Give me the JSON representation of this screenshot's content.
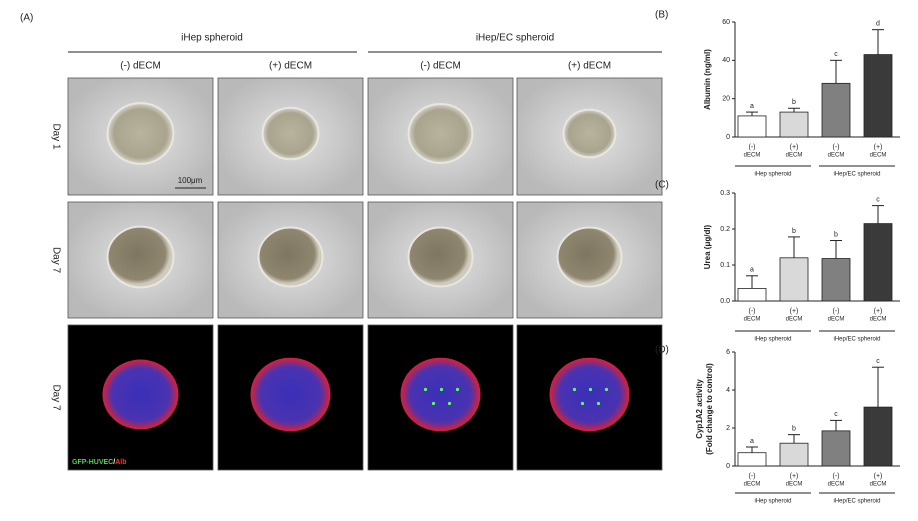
{
  "panel_a": {
    "panel": "(A)",
    "groups": [
      "iHep spheroid",
      "iHep/EC spheroid"
    ],
    "columns": [
      "(-) dECM",
      "(+) dECM",
      "(-) dECM",
      "(+) dECM"
    ],
    "rows": [
      "Day 1",
      "Day 7",
      "Day 7"
    ],
    "scale_bar": "100μm",
    "stain_green": "GFP-HUVEC",
    "stain_sep": "/",
    "stain_red": "Alb"
  },
  "chart_data": [
    {
      "type": "bar",
      "panel": "(B)",
      "y_label": "Albumin (ng/ml)",
      "categories": [
        "(-)",
        "(+)",
        "(-)",
        "(+)"
      ],
      "category_unit": "dECM",
      "groups": [
        "iHep spheroid",
        "iHep/EC spheroid"
      ],
      "values": [
        11,
        13,
        28,
        43
      ],
      "errors": [
        2,
        2,
        12,
        13
      ],
      "annotations": [
        "a",
        "b",
        "c",
        "d"
      ],
      "colors": [
        "#ffffff",
        "#d9d9d9",
        "#808080",
        "#3a3a3a"
      ],
      "ylim": [
        0,
        60
      ],
      "yticks": [
        0,
        20,
        40,
        60
      ]
    },
    {
      "type": "bar",
      "panel": "(C)",
      "y_label": "Urea (μg/dl)",
      "categories": [
        "(-)",
        "(+)",
        "(-)",
        "(+)"
      ],
      "category_unit": "dECM",
      "groups": [
        "iHep spheroid",
        "iHep/EC spheroid"
      ],
      "values": [
        0.035,
        0.12,
        0.118,
        0.215
      ],
      "errors": [
        0.035,
        0.058,
        0.05,
        0.05
      ],
      "annotations": [
        "a",
        "b",
        "b",
        "c"
      ],
      "colors": [
        "#ffffff",
        "#d9d9d9",
        "#808080",
        "#3a3a3a"
      ],
      "ylim": [
        0,
        0.3
      ],
      "yticks": [
        {
          "value": 0,
          "label": "0.0"
        },
        0.1,
        0.2,
        0.3
      ]
    },
    {
      "type": "bar",
      "panel": "(D)",
      "y_label": "Cyp1A2 activity",
      "y_label2": "(Fold change to control)",
      "categories": [
        "(-)",
        "(+)",
        "(-)",
        "(+)"
      ],
      "category_unit": "dECM",
      "groups": [
        "iHep spheroid",
        "iHep/EC spheroid"
      ],
      "values": [
        0.7,
        1.2,
        1.85,
        3.1
      ],
      "errors": [
        0.3,
        0.45,
        0.55,
        2.1
      ],
      "annotations": [
        "a",
        "b",
        "c",
        "c"
      ],
      "colors": [
        "#ffffff",
        "#d9d9d9",
        "#808080",
        "#3a3a3a"
      ],
      "ylim": [
        0,
        6
      ],
      "yticks": [
        0,
        2,
        4,
        6
      ]
    }
  ]
}
